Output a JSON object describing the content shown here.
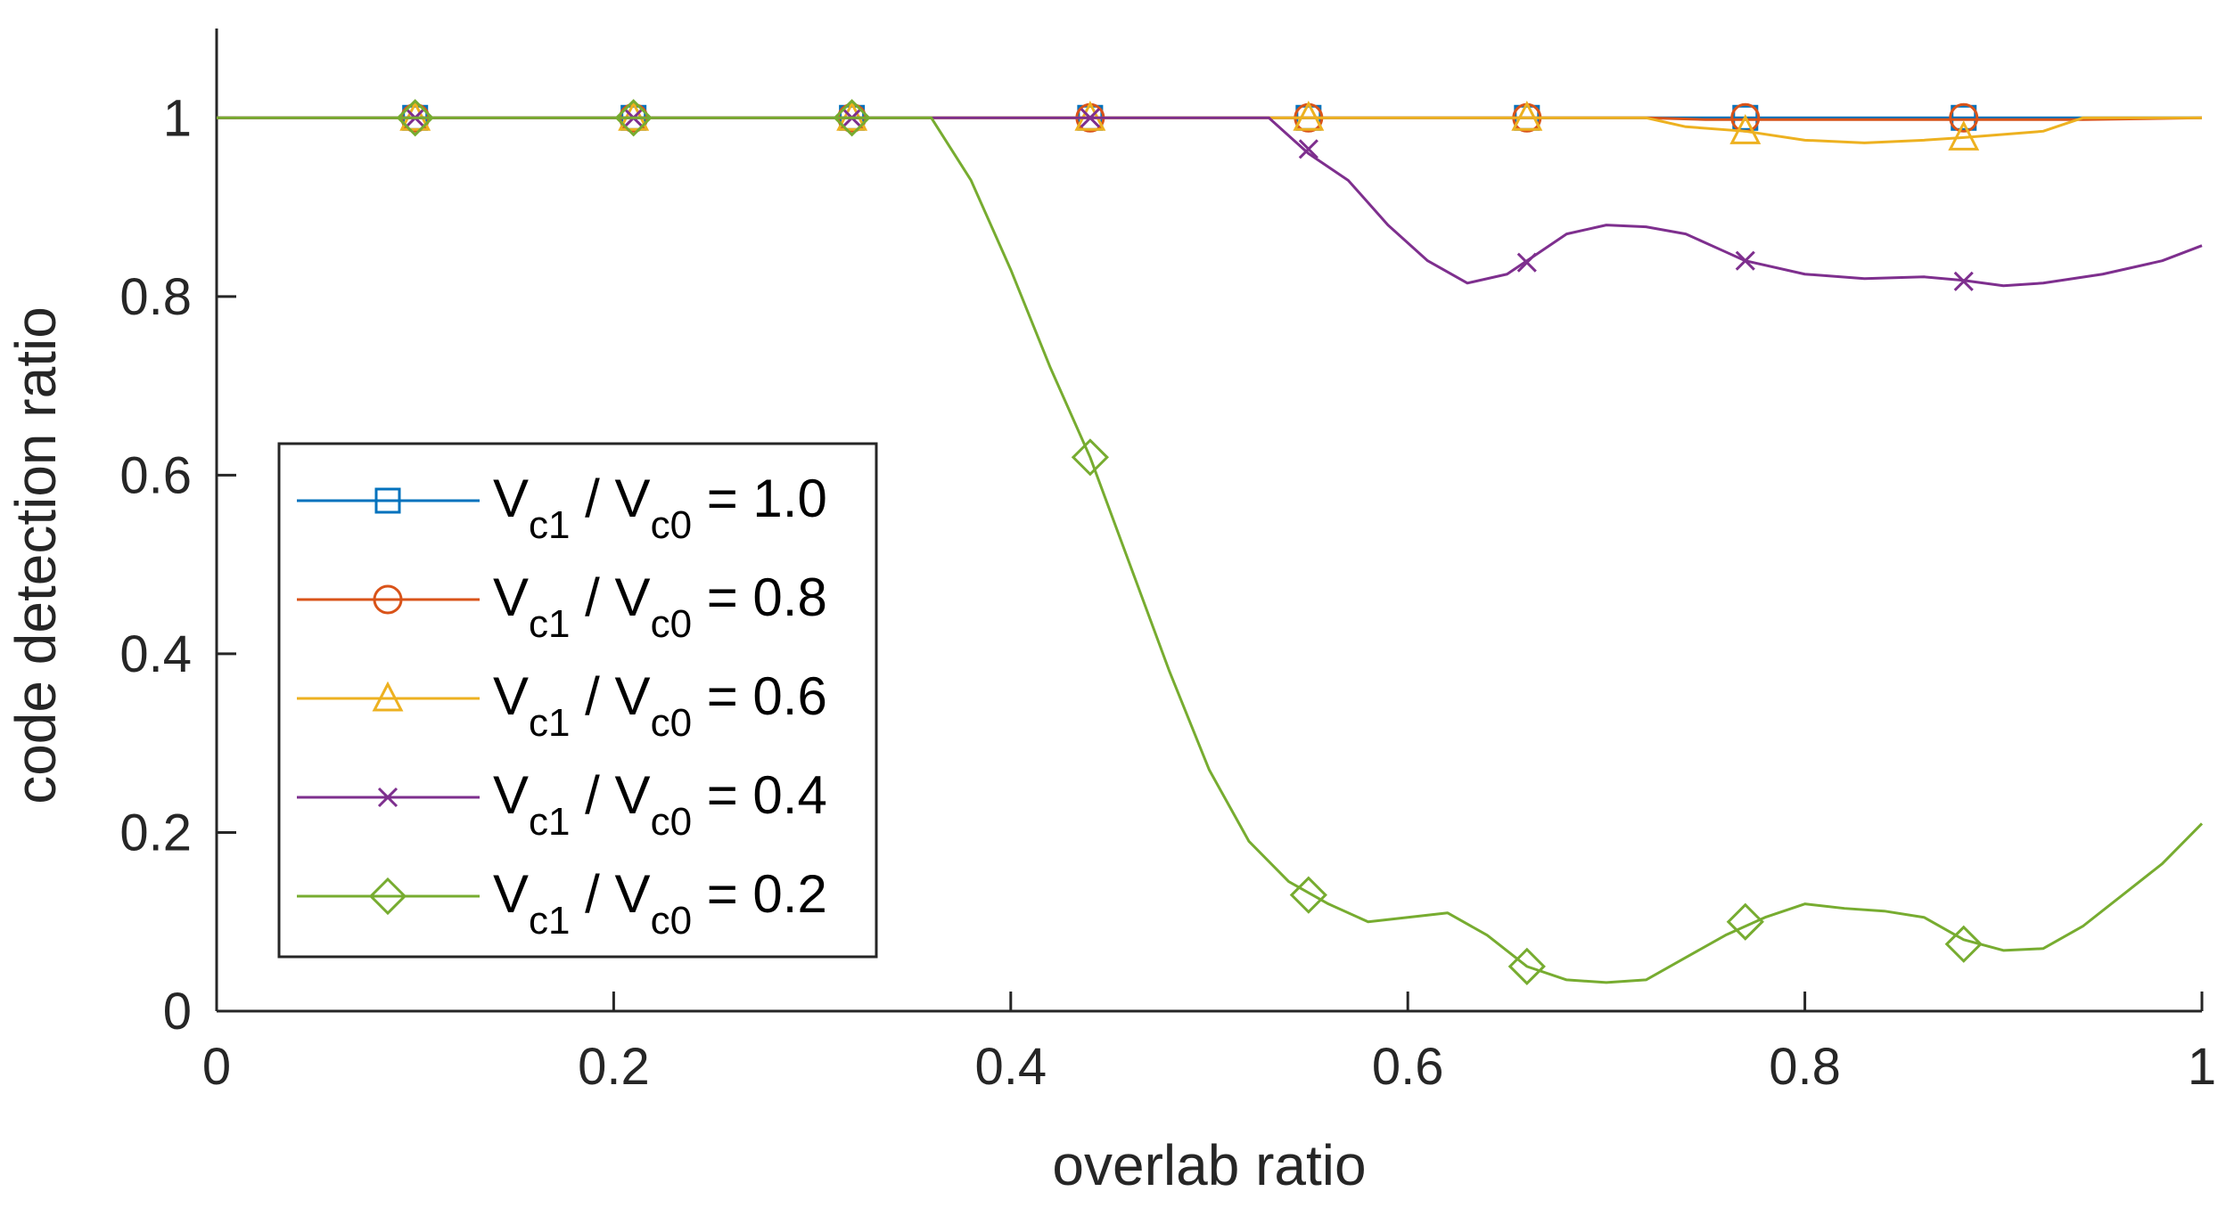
{
  "chart_data": {
    "type": "line",
    "title": "",
    "xlabel": "overlab ratio",
    "ylabel": "code detection ratio",
    "xlim": [
      0,
      1
    ],
    "ylim": [
      0,
      1.1
    ],
    "xticks": [
      0,
      0.2,
      0.4,
      0.6,
      0.8,
      1
    ],
    "xtick_labels": [
      "0",
      "0.2",
      "0.4",
      "0.6",
      "0.8",
      "1"
    ],
    "yticks": [
      0,
      0.2,
      0.4,
      0.6,
      0.8,
      1
    ],
    "ytick_labels": [
      "0",
      "0.2",
      "0.4",
      "0.6",
      "0.8",
      "1"
    ],
    "grid": false,
    "legend_position": "center-left",
    "series": [
      {
        "name": "Vc1 / Vc0 = 1.0",
        "legend": {
          "v1": "V",
          "s1": "c1",
          "mid": " / ",
          "v2": "V",
          "s2": "c0",
          "rest": " = 1.0"
        },
        "color": "#0072BD",
        "marker": "square",
        "x": [
          0,
          1
        ],
        "y": [
          1,
          1
        ],
        "marker_x": [
          0.1,
          0.21,
          0.32,
          0.44,
          0.55,
          0.66,
          0.77,
          0.88
        ],
        "marker_y": [
          1,
          1,
          1,
          1,
          1,
          1,
          1,
          1
        ]
      },
      {
        "name": "Vc1 / Vc0 = 0.8",
        "legend": {
          "v1": "V",
          "s1": "c1",
          "mid": " / ",
          "v2": "V",
          "s2": "c0",
          "rest": " = 0.8"
        },
        "color": "#D95319",
        "marker": "circle",
        "x": [
          0,
          0.72,
          0.75,
          0.94,
          1
        ],
        "y": [
          1,
          1,
          0.998,
          0.998,
          1
        ],
        "marker_x": [
          0.1,
          0.21,
          0.32,
          0.44,
          0.55,
          0.66,
          0.77,
          0.88
        ],
        "marker_y": [
          1,
          1,
          1,
          1,
          1,
          1,
          1,
          1
        ]
      },
      {
        "name": "Vc1 / Vc0 = 0.6",
        "legend": {
          "v1": "V",
          "s1": "c1",
          "mid": " / ",
          "v2": "V",
          "s2": "c0",
          "rest": " = 0.6"
        },
        "color": "#EDB120",
        "marker": "triangle",
        "x": [
          0,
          0.72,
          0.74,
          0.77,
          0.8,
          0.83,
          0.86,
          0.88,
          0.92,
          0.94,
          1
        ],
        "y": [
          1,
          1,
          0.99,
          0.985,
          0.975,
          0.972,
          0.975,
          0.978,
          0.985,
          1,
          1
        ],
        "marker_x": [
          0.1,
          0.21,
          0.32,
          0.44,
          0.55,
          0.66,
          0.77,
          0.88
        ],
        "marker_y": [
          1,
          1,
          1,
          1,
          1,
          1,
          0.985,
          0.978
        ]
      },
      {
        "name": "Vc1 / Vc0 = 0.4",
        "legend": {
          "v1": "V",
          "s1": "c1",
          "mid": " / ",
          "v2": "V",
          "s2": "c0",
          "rest": " = 0.4"
        },
        "color": "#7E2F8E",
        "marker": "x",
        "x": [
          0,
          0.53,
          0.55,
          0.57,
          0.59,
          0.61,
          0.63,
          0.65,
          0.66,
          0.68,
          0.7,
          0.72,
          0.74,
          0.76,
          0.77,
          0.8,
          0.83,
          0.86,
          0.88,
          0.9,
          0.92,
          0.95,
          0.98,
          1
        ],
        "y": [
          1,
          1,
          0.96,
          0.93,
          0.88,
          0.84,
          0.815,
          0.825,
          0.84,
          0.87,
          0.88,
          0.878,
          0.87,
          0.85,
          0.84,
          0.825,
          0.82,
          0.822,
          0.818,
          0.812,
          0.815,
          0.825,
          0.84,
          0.857
        ],
        "marker_x": [
          0.1,
          0.21,
          0.32,
          0.44,
          0.55,
          0.66,
          0.77,
          0.88
        ],
        "marker_y": [
          1,
          1,
          1,
          1,
          0.965,
          0.838,
          0.84,
          0.817
        ]
      },
      {
        "name": "Vc1 / Vc0 = 0.2",
        "legend": {
          "v1": "V",
          "s1": "c1",
          "mid": " / ",
          "v2": "V",
          "s2": "c0",
          "rest": " = 0.2"
        },
        "color": "#77AC30",
        "marker": "diamond",
        "x": [
          0,
          0.36,
          0.38,
          0.4,
          0.42,
          0.44,
          0.46,
          0.48,
          0.5,
          0.52,
          0.54,
          0.56,
          0.58,
          0.6,
          0.62,
          0.64,
          0.66,
          0.68,
          0.7,
          0.72,
          0.74,
          0.76,
          0.78,
          0.8,
          0.82,
          0.84,
          0.86,
          0.88,
          0.9,
          0.92,
          0.94,
          0.96,
          0.98,
          1
        ],
        "y": [
          1,
          1,
          0.93,
          0.83,
          0.72,
          0.62,
          0.5,
          0.38,
          0.27,
          0.19,
          0.145,
          0.12,
          0.1,
          0.105,
          0.11,
          0.085,
          0.05,
          0.035,
          0.032,
          0.035,
          0.06,
          0.085,
          0.105,
          0.12,
          0.115,
          0.112,
          0.105,
          0.08,
          0.068,
          0.07,
          0.095,
          0.13,
          0.165,
          0.21
        ],
        "marker_x": [
          0.1,
          0.21,
          0.32,
          0.44,
          0.55,
          0.66,
          0.77,
          0.88
        ],
        "marker_y": [
          1,
          1,
          1,
          0.62,
          0.13,
          0.05,
          0.1,
          0.075
        ]
      }
    ]
  }
}
